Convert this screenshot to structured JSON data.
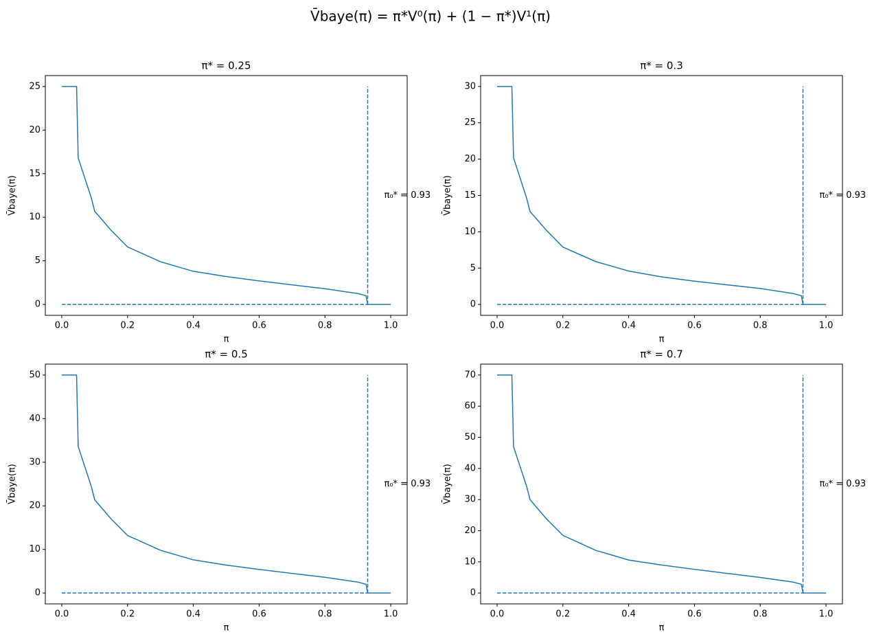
{
  "title": "V̄baye(π) = π*V⁰(π) + (1 − π*)V¹(π)",
  "chart_data": [
    {
      "type": "line",
      "title": "π* = 0.25",
      "xlabel": "π",
      "ylabel": "V̄baye(π)",
      "annotation": "π₀* = 0.93",
      "xlim": [
        -0.05,
        1.05
      ],
      "xticks": [
        {
          "value": 0,
          "label": "0.0"
        },
        0.2,
        0.4,
        0.6,
        0.8,
        {
          "value": 1,
          "label": "1.0"
        }
      ],
      "ylim": [
        -1.25,
        26.25
      ],
      "yticks": [
        0,
        5,
        10,
        15,
        20,
        25
      ],
      "series": [
        {
          "color": "#1f77b4",
          "dashed": false,
          "x": [
            0,
            0.045,
            0.05,
            0.07,
            0.09,
            0.1,
            0.15,
            0.2,
            0.3,
            0.4,
            0.5,
            0.6,
            0.7,
            0.8,
            0.9,
            0.925,
            0.93,
            1.0
          ],
          "values": [
            25,
            25,
            16.8,
            14.5,
            12.2,
            10.7,
            8.5,
            6.6,
            4.9,
            3.8,
            3.2,
            2.7,
            2.25,
            1.8,
            1.25,
            1.0,
            0,
            0
          ]
        },
        {
          "color": "#1f77b4",
          "dashed": true,
          "x": [
            0,
            0.93
          ],
          "values": [
            0,
            0
          ]
        },
        {
          "color": "#1f77b4",
          "dashed": true,
          "x": [
            0.93,
            0.93
          ],
          "values": [
            0,
            25
          ]
        }
      ]
    },
    {
      "type": "line",
      "title": "π* = 0.3",
      "xlabel": "π",
      "ylabel": "V̄baye(π)",
      "annotation": "π₀* = 0.93",
      "xlim": [
        -0.05,
        1.05
      ],
      "xticks": [
        {
          "value": 0,
          "label": "0.0"
        },
        0.2,
        0.4,
        0.6,
        0.8,
        {
          "value": 1,
          "label": "1.0"
        }
      ],
      "ylim": [
        -1.5,
        31.5
      ],
      "yticks": [
        0,
        5,
        10,
        15,
        20,
        25,
        30
      ],
      "series": [
        {
          "color": "#1f77b4",
          "dashed": false,
          "x": [
            0,
            0.045,
            0.05,
            0.07,
            0.09,
            0.1,
            0.15,
            0.2,
            0.3,
            0.4,
            0.5,
            0.6,
            0.7,
            0.8,
            0.9,
            0.925,
            0.93,
            1.0
          ],
          "values": [
            30,
            30,
            20.2,
            17.4,
            14.6,
            12.8,
            10.2,
            7.9,
            5.9,
            4.6,
            3.8,
            3.2,
            2.7,
            2.2,
            1.5,
            1.2,
            0,
            0
          ]
        },
        {
          "color": "#1f77b4",
          "dashed": true,
          "x": [
            0,
            0.93
          ],
          "values": [
            0,
            0
          ]
        },
        {
          "color": "#1f77b4",
          "dashed": true,
          "x": [
            0.93,
            0.93
          ],
          "values": [
            0,
            30
          ]
        }
      ]
    },
    {
      "type": "line",
      "title": "π* = 0.5",
      "xlabel": "π",
      "ylabel": "V̄baye(π)",
      "annotation": "π₀* = 0.93",
      "xlim": [
        -0.05,
        1.05
      ],
      "xticks": [
        {
          "value": 0,
          "label": "0.0"
        },
        0.2,
        0.4,
        0.6,
        0.8,
        {
          "value": 1,
          "label": "1.0"
        }
      ],
      "ylim": [
        -2.5,
        52.5
      ],
      "yticks": [
        0,
        10,
        20,
        30,
        40,
        50
      ],
      "series": [
        {
          "color": "#1f77b4",
          "dashed": false,
          "x": [
            0,
            0.045,
            0.05,
            0.07,
            0.09,
            0.1,
            0.15,
            0.2,
            0.3,
            0.4,
            0.5,
            0.6,
            0.7,
            0.8,
            0.9,
            0.925,
            0.93,
            1.0
          ],
          "values": [
            50,
            50,
            33.6,
            29,
            24.4,
            21.4,
            17,
            13.2,
            9.8,
            7.6,
            6.4,
            5.4,
            4.5,
            3.6,
            2.5,
            2.0,
            0,
            0
          ]
        },
        {
          "color": "#1f77b4",
          "dashed": true,
          "x": [
            0,
            0.93
          ],
          "values": [
            0,
            0
          ]
        },
        {
          "color": "#1f77b4",
          "dashed": true,
          "x": [
            0.93,
            0.93
          ],
          "values": [
            0,
            50
          ]
        }
      ]
    },
    {
      "type": "line",
      "title": "π* = 0.7",
      "xlabel": "π",
      "ylabel": "V̄baye(π)",
      "annotation": "π₀* = 0.93",
      "xlim": [
        -0.05,
        1.05
      ],
      "xticks": [
        {
          "value": 0,
          "label": "0.0"
        },
        0.2,
        0.4,
        0.6,
        0.8,
        {
          "value": 1,
          "label": "1.0"
        }
      ],
      "ylim": [
        -3.5,
        73.5
      ],
      "yticks": [
        0,
        10,
        20,
        30,
        40,
        50,
        60,
        70
      ],
      "series": [
        {
          "color": "#1f77b4",
          "dashed": false,
          "x": [
            0,
            0.045,
            0.05,
            0.07,
            0.09,
            0.1,
            0.15,
            0.2,
            0.3,
            0.4,
            0.5,
            0.6,
            0.7,
            0.8,
            0.9,
            0.925,
            0.93,
            1.0
          ],
          "values": [
            70,
            70,
            47,
            40.6,
            34.2,
            30,
            23.8,
            18.5,
            13.7,
            10.6,
            9,
            7.6,
            6.3,
            5,
            3.5,
            2.8,
            0,
            0
          ]
        },
        {
          "color": "#1f77b4",
          "dashed": true,
          "x": [
            0,
            0.93
          ],
          "values": [
            0,
            0
          ]
        },
        {
          "color": "#1f77b4",
          "dashed": true,
          "x": [
            0.93,
            0.93
          ],
          "values": [
            0,
            70
          ]
        }
      ]
    }
  ]
}
